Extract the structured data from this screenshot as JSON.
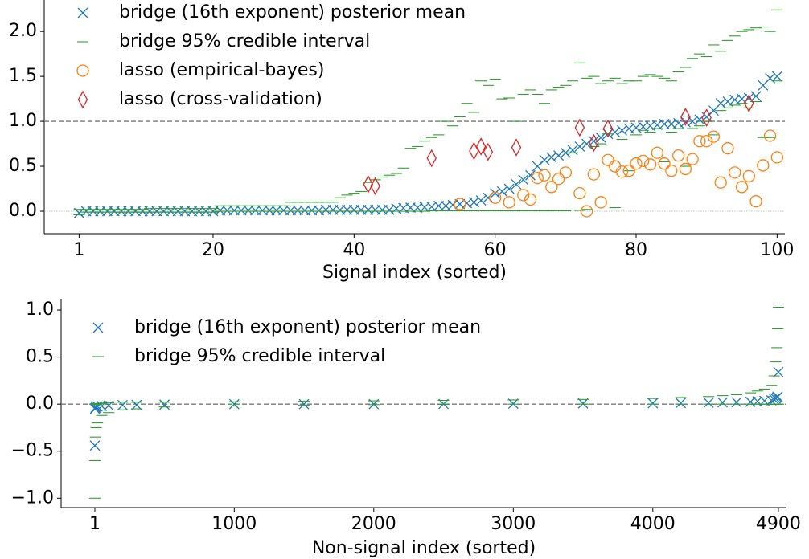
{
  "chart_data": [
    {
      "type": "scatter",
      "xlabel": "Signal index (sorted)",
      "xlim": [
        -3.95,
        101.1
      ],
      "xticks": [
        1,
        20,
        40,
        60,
        80,
        100
      ],
      "ylim": [
        -0.25,
        2.35
      ],
      "yticks": [
        {
          "value": 0,
          "label": "0.0"
        },
        0.5,
        {
          "value": 1,
          "label": "1.0"
        },
        1.5,
        {
          "value": 2,
          "label": "2.0"
        }
      ],
      "legend": "upper left",
      "hlines": [
        {
          "y": 1,
          "style": "dashed"
        },
        {
          "y": 0,
          "style": "dotted"
        }
      ],
      "x": [
        1,
        2,
        3,
        4,
        5,
        6,
        7,
        8,
        9,
        10,
        11,
        12,
        13,
        14,
        15,
        16,
        17,
        18,
        19,
        20,
        21,
        22,
        23,
        24,
        25,
        26,
        27,
        28,
        29,
        30,
        31,
        32,
        33,
        34,
        35,
        36,
        37,
        38,
        39,
        40,
        41,
        42,
        43,
        44,
        45,
        46,
        47,
        48,
        49,
        50,
        51,
        52,
        53,
        54,
        55,
        56,
        57,
        58,
        59,
        60,
        61,
        62,
        63,
        64,
        65,
        66,
        67,
        68,
        69,
        70,
        71,
        72,
        73,
        74,
        75,
        76,
        77,
        78,
        79,
        80,
        81,
        82,
        83,
        84,
        85,
        86,
        87,
        88,
        89,
        90,
        91,
        92,
        93,
        94,
        95,
        96,
        97,
        98,
        99,
        100
      ],
      "series": [
        {
          "name": "bridge (16th exponent) posterior mean",
          "color": "#1f77b4",
          "marker": "x",
          "values": [
            -0.02,
            0,
            0,
            0,
            0,
            0,
            0,
            0,
            0,
            0,
            0,
            0,
            0,
            0,
            0,
            0,
            0,
            0,
            0,
            0,
            0.01,
            0.01,
            0.01,
            0.01,
            0.01,
            0.01,
            0.01,
            0.01,
            0.01,
            0.01,
            0.01,
            0.01,
            0.01,
            0.01,
            0.01,
            0.015,
            0.015,
            0.015,
            0.015,
            0.015,
            0.015,
            0.015,
            0.015,
            0.015,
            0.015,
            0.03,
            0.035,
            0.04,
            0.04,
            0.045,
            0.05,
            0.06,
            0.06,
            0.07,
            0.08,
            0.09,
            0.1,
            0.12,
            0.15,
            0.2,
            0.22,
            0.25,
            0.3,
            0.35,
            0.4,
            0.5,
            0.57,
            0.6,
            0.62,
            0.65,
            0.68,
            0.72,
            0.75,
            0.78,
            0.82,
            0.86,
            0.88,
            0.9,
            0.92,
            0.93,
            0.94,
            0.95,
            0.96,
            0.97,
            0.97,
            0.98,
            0.99,
            1.0,
            1.02,
            1.05,
            1.12,
            1.2,
            1.22,
            1.24,
            1.25,
            1.26,
            1.28,
            1.4,
            1.48,
            1.5
          ]
        },
        {
          "name": "bridge 95% credible interval",
          "color": "#2ca02c",
          "marker": "dash",
          "lower": [
            -0.04,
            -0.01,
            -0.01,
            -0.01,
            -0.01,
            -0.01,
            -0.01,
            -0.01,
            -0.01,
            -0.01,
            -0.01,
            -0.01,
            -0.01,
            -0.01,
            -0.01,
            -0.01,
            -0.01,
            -0.01,
            -0.01,
            -0.01,
            0,
            0,
            0,
            0,
            0,
            0,
            0,
            0,
            0,
            0,
            0,
            0,
            0,
            0,
            0,
            0,
            0,
            0,
            0,
            0,
            0,
            0,
            0,
            0,
            0,
            0,
            0,
            0,
            0,
            0,
            0.005,
            0.005,
            0.005,
            0.005,
            0.005,
            0.005,
            0.005,
            0.005,
            0.005,
            0.005,
            0.005,
            0.005,
            0.005,
            0.005,
            0.005,
            0.005,
            0.005,
            0.005,
            0.005,
            0.005,
            0.65,
            0.01,
            0.02,
            0.72,
            0.75,
            0.86,
            0.04,
            0.8,
            0.45,
            0.85,
            0.9,
            0.88,
            0.92,
            0.55,
            0.88,
            0.92,
            0.5,
            0.92,
            0.95,
            1.0,
            0.85,
            1.12,
            1.15,
            1.18,
            1.2,
            1.15,
            1.22,
            0.82,
            0.82,
            1.45
          ],
          "upper": [
            0.02,
            0.02,
            0.02,
            0.02,
            0.02,
            0.02,
            0.02,
            0.02,
            0.02,
            0.02,
            0.03,
            0.03,
            0.03,
            0.03,
            0.03,
            0.03,
            0.03,
            0.03,
            0.03,
            0.03,
            0.06,
            0.06,
            0.06,
            0.06,
            0.06,
            0.06,
            0.06,
            0.06,
            0.06,
            0.06,
            0.1,
            0.1,
            0.1,
            0.1,
            0.1,
            0.1,
            0.1,
            0.15,
            0.18,
            0.2,
            0.22,
            0.32,
            0.35,
            0.38,
            0.4,
            0.42,
            0.48,
            0.7,
            0.72,
            0.78,
            0.82,
            0.85,
            1.0,
            0.95,
            1.05,
            1.2,
            1.1,
            1.45,
            1.4,
            1.47,
            1.25,
            1.26,
            1.0,
            1.3,
            1.35,
            1.3,
            1.2,
            1.35,
            1.38,
            1.4,
            1.45,
            1.65,
            1.48,
            1.5,
            1.42,
            1.45,
            1.48,
            1.42,
            1.45,
            1.45,
            1.5,
            1.52,
            1.5,
            1.48,
            1.45,
            1.55,
            1.6,
            1.7,
            1.75,
            1.72,
            1.85,
            1.78,
            1.9,
            1.95,
            2.0,
            2.02,
            2.04,
            2.05,
            2.0,
            2.24
          ]
        },
        {
          "name": "lasso (empirical-bayes)",
          "color": "#ff7f0e",
          "marker": "circle",
          "x": [
            55,
            60,
            62,
            64,
            65,
            66,
            67,
            68,
            69,
            70,
            72,
            73,
            74,
            75,
            76,
            77,
            78,
            79,
            80,
            81,
            82,
            83,
            84,
            85,
            86,
            87,
            88,
            89,
            90,
            91,
            92,
            93,
            94,
            95,
            96,
            97,
            98,
            99,
            100
          ],
          "values": [
            0.08,
            0.15,
            0.1,
            0.18,
            0.13,
            0.37,
            0.4,
            0.27,
            0.36,
            0.43,
            0.2,
            0.0,
            0.41,
            0.1,
            0.57,
            0.5,
            0.44,
            0.45,
            0.53,
            0.56,
            0.52,
            0.65,
            0.53,
            0.45,
            0.62,
            0.47,
            0.58,
            0.78,
            0.78,
            0.83,
            0.32,
            0.7,
            0.43,
            0.27,
            0.39,
            0.11,
            0.51,
            0.84,
            0.6
          ]
        },
        {
          "name": "lasso (cross-validation)",
          "color": "#d62728",
          "marker": "diamond",
          "x": [
            42,
            43,
            51,
            57,
            58,
            59,
            63,
            72,
            74,
            76,
            87,
            90,
            96
          ],
          "values": [
            0.3,
            0.28,
            0.59,
            0.67,
            0.72,
            0.66,
            0.71,
            0.93,
            0.76,
            0.92,
            1.05,
            1.04,
            1.2
          ]
        }
      ]
    },
    {
      "type": "scatter",
      "xlabel": "Non-signal index (sorted)",
      "xlim": [
        -241,
        4958
      ],
      "xticks": [
        1,
        1000,
        2000,
        3000,
        4000,
        4900
      ],
      "ylim": [
        -1.1,
        1.12
      ],
      "yticks": [
        {
          "value": -1,
          "label": "−1.0"
        },
        {
          "value": -0.5,
          "label": "−0.5"
        },
        {
          "value": 0,
          "label": "0.0"
        },
        {
          "value": 0.5,
          "label": "0.5"
        },
        {
          "value": 1,
          "label": "1.0"
        }
      ],
      "legend": "upper left",
      "hlines": [
        {
          "y": 0,
          "style": "dashed"
        }
      ],
      "x": [
        1,
        2,
        5,
        10,
        20,
        50,
        100,
        200,
        300,
        500,
        1000,
        1500,
        2000,
        2500,
        3000,
        3500,
        4000,
        4200,
        4400,
        4500,
        4600,
        4700,
        4750,
        4800,
        4850,
        4870,
        4880,
        4890,
        4895,
        4900
      ],
      "series": [
        {
          "name": "bridge (16th exponent) posterior mean",
          "color": "#1f77b4",
          "marker": "x",
          "values": [
            -0.44,
            -0.05,
            -0.04,
            -0.03,
            -0.025,
            -0.02,
            -0.015,
            -0.01,
            -0.008,
            -0.005,
            0,
            0,
            0,
            0.002,
            0.005,
            0.008,
            0.01,
            0.012,
            0.015,
            0.018,
            0.02,
            0.025,
            0.03,
            0.035,
            0.04,
            0.05,
            0.06,
            0.07,
            0.08,
            0.34
          ]
        },
        {
          "name": "bridge 95% credible interval",
          "color": "#2ca02c",
          "marker": "dash",
          "lower": [
            -1.0,
            -0.6,
            -0.35,
            -0.25,
            -0.2,
            -0.12,
            -0.09,
            -0.06,
            -0.05,
            -0.03,
            -0.02,
            -0.01,
            -0.005,
            -0.003,
            0,
            0,
            0,
            0,
            0,
            0,
            0,
            0,
            0,
            0,
            0,
            0,
            0,
            0,
            0,
            0
          ],
          "upper": [
            0,
            0,
            0,
            0,
            0.005,
            0.01,
            0.015,
            0.02,
            0.02,
            0.02,
            0.025,
            0.03,
            0.035,
            0.04,
            0.045,
            0.05,
            0.06,
            0.07,
            0.08,
            0.09,
            0.1,
            0.12,
            0.14,
            0.16,
            0.2,
            0.3,
            0.45,
            0.6,
            0.8,
            1.03
          ]
        }
      ]
    }
  ]
}
